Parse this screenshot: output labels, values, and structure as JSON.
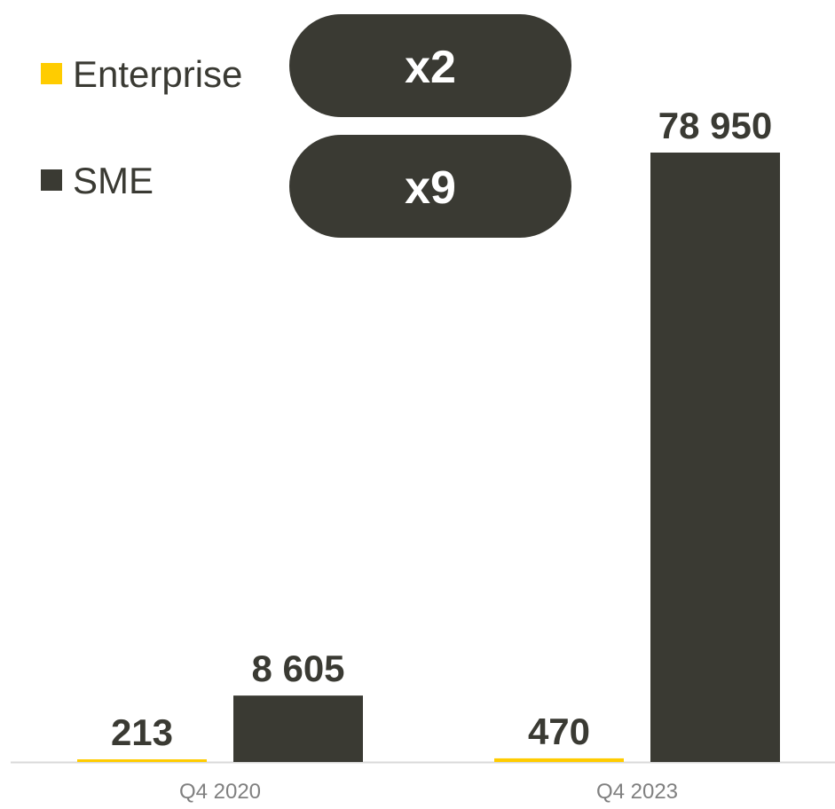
{
  "chart_data": {
    "type": "bar",
    "categories": [
      "Q4 2020",
      "Q4 2023"
    ],
    "series": [
      {
        "name": "Enterprise",
        "values": [
          213,
          470
        ],
        "color": "#FFCC00"
      },
      {
        "name": "SME",
        "values": [
          8605,
          78950
        ],
        "color": "#3A3A33"
      }
    ],
    "data_labels": [
      [
        "213",
        "470"
      ],
      [
        "8 605",
        "78 950"
      ]
    ],
    "ylim": [
      0,
      86000
    ],
    "grid": false,
    "legend": "top-left",
    "title": "",
    "xlabel": "",
    "ylabel": "",
    "annotations": [
      {
        "label": "x2",
        "series": "Enterprise"
      },
      {
        "label": "x9",
        "series": "SME"
      }
    ]
  },
  "colors": {
    "enterprise": "#FFCC00",
    "sme": "#3A3A33",
    "annotation_fill": "#3A3A33",
    "annotation_text": "#FFFFFF",
    "axis": "#D9D9D9",
    "tick_text": "#808080",
    "value_text": "#3A3A33"
  }
}
